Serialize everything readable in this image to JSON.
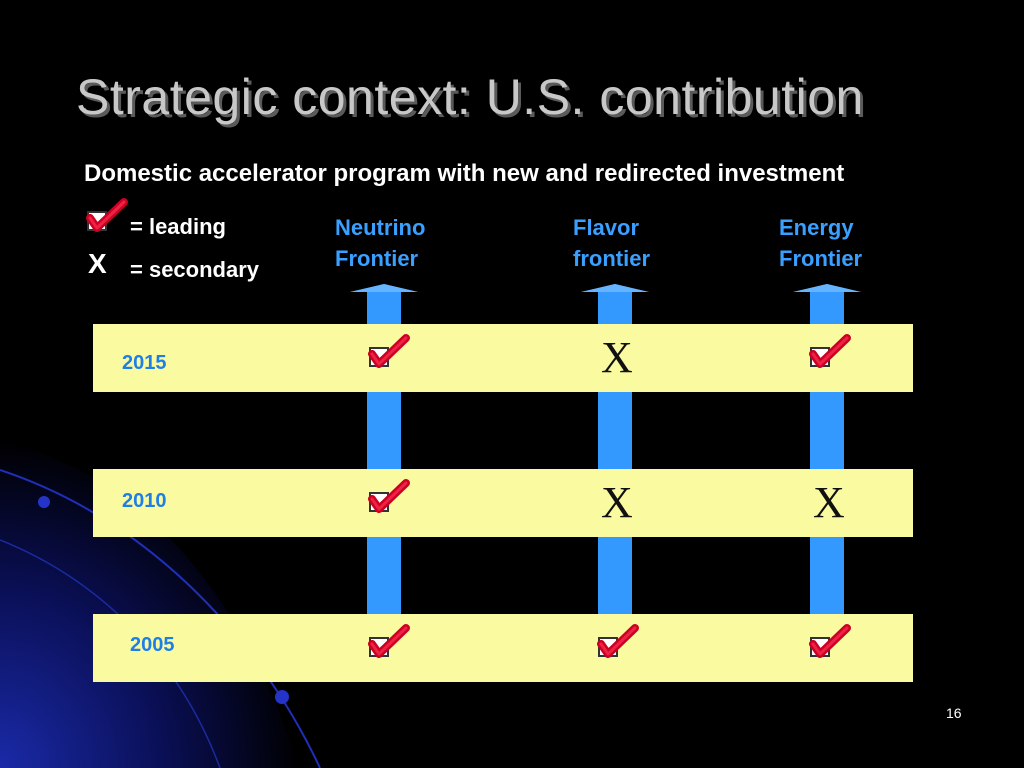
{
  "title": "Strategic context: U.S. contribution",
  "subtitle": "Domestic accelerator program with new and redirected investment",
  "legend": {
    "leading_label": "= leading",
    "secondary_symbol": "X",
    "secondary_label": "= secondary"
  },
  "columns": [
    {
      "line1": "Neutrino",
      "line2": "Frontier"
    },
    {
      "line1": "Flavor",
      "line2": "frontier"
    },
    {
      "line1": "Energy",
      "line2": "Frontier"
    }
  ],
  "rows": [
    {
      "year": "2015",
      "marks": [
        "leading",
        "secondary",
        "leading"
      ]
    },
    {
      "year": "2010",
      "marks": [
        "leading",
        "secondary",
        "secondary"
      ]
    },
    {
      "year": "2005",
      "marks": [
        "leading",
        "leading",
        "leading"
      ]
    }
  ],
  "x_symbol": "X",
  "page_number": "16",
  "colors": {
    "band": "#fafaa0",
    "arrow": "#3399ff",
    "column_label": "#3aa0ff",
    "year": "#1f7fe8",
    "check": "#cc0022"
  },
  "icons": {
    "leading": "checkbox-check-icon",
    "secondary": "x-mark"
  }
}
